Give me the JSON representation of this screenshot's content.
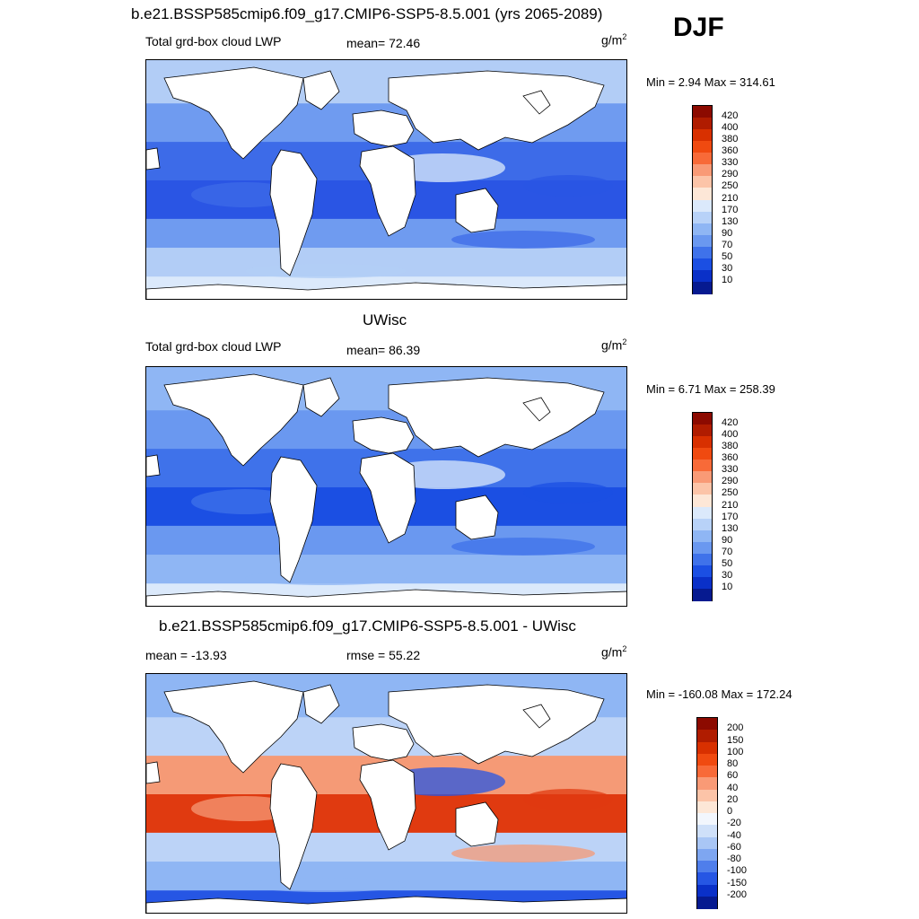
{
  "season": "DJF",
  "colors": {
    "land": "#ffffff",
    "coast": "#000000"
  },
  "panels": [
    {
      "title": "b.e21.BSSP585cmip6.f09_g17.CMIP6-SSP5-8.5.001 (yrs 2065-2089)",
      "left_text": "Total grd-box cloud LWP",
      "center_text": "mean=  72.46",
      "units": "g/m",
      "units_sup": "2",
      "minmax": "Min =   2.94 Max = 314.61",
      "colorbar": {
        "labels": [
          "420",
          "400",
          "380",
          "360",
          "330",
          "290",
          "250",
          "210",
          "170",
          "130",
          "90",
          "70",
          "50",
          "30",
          "10"
        ],
        "colors": [
          "#8c0a00",
          "#b01c00",
          "#d83000",
          "#f04a10",
          "#f86a38",
          "#f99a76",
          "#fcc4a8",
          "#fde7d7",
          "#dbe9fb",
          "#b8d2f8",
          "#8fb6f4",
          "#6a98f0",
          "#3f72ea",
          "#1b4fe3",
          "#0a30c8",
          "#061a90"
        ]
      },
      "map_fill": [
        "#2a55e4",
        "#3d6be8",
        "#6f9bf0",
        "#b2cdf6",
        "#dbe9fb"
      ]
    },
    {
      "title": "UWisc",
      "left_text": "Total grd-box cloud LWP",
      "center_text": "mean=  86.39",
      "units": "g/m",
      "units_sup": "2",
      "minmax": "Min =   6.71 Max = 258.39",
      "colorbar": {
        "labels": [
          "420",
          "400",
          "380",
          "360",
          "330",
          "290",
          "250",
          "210",
          "170",
          "130",
          "90",
          "70",
          "50",
          "30",
          "10"
        ],
        "colors": [
          "#8c0a00",
          "#b01c00",
          "#d83000",
          "#f04a10",
          "#f86a38",
          "#f99a76",
          "#fcc4a8",
          "#fde7d7",
          "#dbe9fb",
          "#b8d2f8",
          "#8fb6f4",
          "#6a98f0",
          "#3f72ea",
          "#1b4fe3",
          "#0a30c8",
          "#061a90"
        ]
      },
      "map_fill": [
        "#1b4fe3",
        "#3f72ea",
        "#6a98f0",
        "#8fb6f4",
        "#dbe9fb"
      ]
    },
    {
      "title": "b.e21.BSSP585cmip6.f09_g17.CMIP6-SSP5-8.5.001 - UWisc",
      "left_text": "mean = -13.93",
      "center_text": "rmse =  55.22",
      "units": "g/m",
      "units_sup": "2",
      "minmax": "Min = -160.08 Max = 172.24",
      "colorbar": {
        "labels": [
          "200",
          "150",
          "100",
          "80",
          "60",
          "40",
          "20",
          "0",
          "-20",
          "-40",
          "-60",
          "-80",
          "-100",
          "-150",
          "-200"
        ],
        "colors": [
          "#8c0a00",
          "#b01c00",
          "#d83000",
          "#f04a10",
          "#f86a38",
          "#f99a76",
          "#fcc4a8",
          "#fde7d7",
          "#f2f6fd",
          "#cfe0f9",
          "#a9c6f5",
          "#7ea6f1",
          "#4f7eeb",
          "#2656e4",
          "#0a30c8",
          "#061a90"
        ]
      },
      "map_fill": [
        "#e03a10",
        "#f59a76",
        "#bcd3f7",
        "#8fb6f4",
        "#2656e4"
      ]
    }
  ]
}
